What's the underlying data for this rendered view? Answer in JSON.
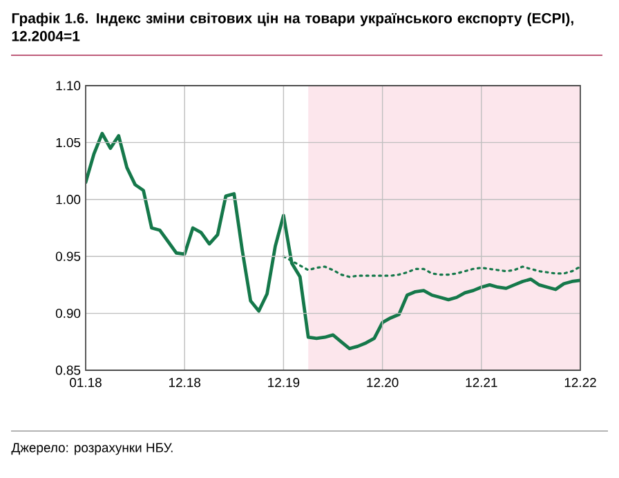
{
  "chart_data": {
    "type": "line",
    "title": "Графік 1.6. Індекс зміни світових цін на товари українського експорту (ECPI), 12.2004=1",
    "annotations": [
      "Джерело: розрахунки НБУ."
    ],
    "categories": [
      "01.18",
      null,
      null,
      null,
      null,
      null,
      null,
      null,
      null,
      null,
      null,
      null,
      "12.18",
      null,
      null,
      null,
      null,
      null,
      null,
      null,
      null,
      null,
      null,
      null,
      "12.19",
      null,
      null,
      null,
      null,
      null,
      null,
      null,
      null,
      null,
      null,
      null,
      "12.20",
      null,
      null,
      null,
      null,
      null,
      null,
      null,
      null,
      null,
      null,
      null,
      "12.21",
      null,
      null,
      null,
      null,
      null,
      null,
      null,
      null,
      null,
      null,
      null,
      "12.22"
    ],
    "ylim": [
      0.85,
      1.1
    ],
    "yticks": [
      {
        "value": 0.85,
        "label": "0.85"
      },
      {
        "value": 0.9,
        "label": "0.90"
      },
      {
        "value": 0.95,
        "label": "0.95"
      },
      {
        "value": 1.0,
        "label": "1.00"
      },
      {
        "value": 1.05,
        "label": "1.05"
      },
      {
        "value": 1.1,
        "label": "1.10"
      }
    ],
    "grid": true,
    "marker": "none",
    "series": [
      {
        "color": "#15784a",
        "line_style": "solid",
        "values": [
          1.015,
          1.04,
          1.058,
          1.045,
          1.056,
          1.028,
          1.013,
          1.008,
          0.975,
          0.973,
          0.963,
          0.953,
          0.952,
          0.975,
          0.971,
          0.961,
          0.969,
          1.003,
          1.005,
          0.955,
          0.911,
          0.902,
          0.917,
          0.959,
          0.986,
          0.944,
          0.932,
          0.879,
          0.878,
          0.879,
          0.881,
          0.875,
          0.869,
          0.871,
          0.874,
          0.878,
          0.892,
          0.896,
          0.899,
          0.916,
          0.919,
          0.92,
          0.916,
          0.914,
          0.912,
          0.914,
          0.918,
          0.92,
          0.923,
          0.925,
          0.923,
          0.922,
          0.925,
          0.928,
          0.93,
          0.925,
          0.923,
          0.921,
          0.926,
          0.928,
          0.929
        ]
      },
      {
        "color": "#15784a",
        "line_style": "dotted",
        "values": [
          null,
          null,
          null,
          null,
          null,
          null,
          null,
          null,
          null,
          null,
          null,
          null,
          null,
          null,
          null,
          null,
          null,
          null,
          null,
          null,
          null,
          null,
          null,
          null,
          0.95,
          null,
          null,
          0.938,
          0.94,
          0.941,
          0.938,
          0.934,
          0.932,
          0.933,
          0.933,
          0.933,
          0.933,
          0.933,
          0.934,
          0.936,
          0.939,
          0.939,
          0.935,
          0.934,
          0.934,
          0.935,
          0.937,
          0.939,
          0.94,
          0.939,
          0.938,
          0.937,
          0.938,
          0.941,
          0.939,
          0.937,
          0.936,
          0.935,
          0.935,
          0.937,
          0.941
        ]
      }
    ]
  }
}
